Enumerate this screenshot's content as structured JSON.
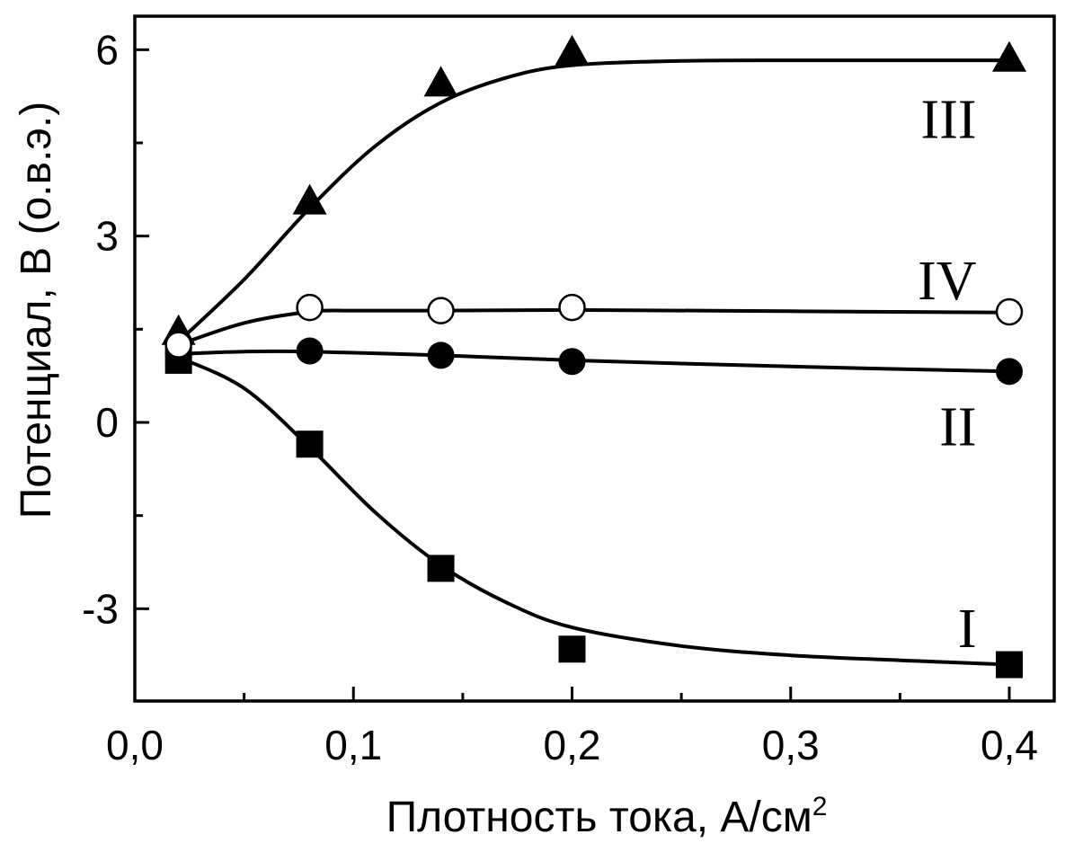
{
  "chart_data": {
    "type": "line",
    "title": "",
    "xlabel": "Плотность тока, А/см",
    "xlabel_superscript": "2",
    "ylabel": "Потенциал, В (о.в.э.)",
    "xlim": [
      0.0,
      0.4
    ],
    "ylim": [
      -4.5,
      6.6
    ],
    "x_ticks": [
      0.0,
      0.1,
      0.2,
      0.3,
      0.4
    ],
    "x_tick_labels": [
      "0,0",
      "0,1",
      "0,2",
      "0,3",
      "0,4"
    ],
    "y_ticks": [
      -3,
      0,
      3,
      6
    ],
    "y_tick_labels": [
      "-3",
      "0",
      "3",
      "6"
    ],
    "grid": false,
    "series": [
      {
        "name": "I",
        "marker": "filled-square",
        "color": "#000000",
        "x": [
          0.02,
          0.08,
          0.14,
          0.2,
          0.4
        ],
        "y": [
          1.0,
          -0.35,
          -2.35,
          -3.65,
          -3.9
        ],
        "curve": [
          [
            0.02,
            1.05
          ],
          [
            0.05,
            0.55
          ],
          [
            0.08,
            -0.4
          ],
          [
            0.11,
            -1.45
          ],
          [
            0.14,
            -2.3
          ],
          [
            0.17,
            -2.9
          ],
          [
            0.2,
            -3.3
          ],
          [
            0.25,
            -3.6
          ],
          [
            0.3,
            -3.75
          ],
          [
            0.35,
            -3.83
          ],
          [
            0.4,
            -3.9
          ]
        ]
      },
      {
        "name": "II",
        "marker": "filled-circle",
        "color": "#000000",
        "x": [
          0.02,
          0.08,
          0.14,
          0.2,
          0.4
        ],
        "y": [
          1.1,
          1.15,
          1.08,
          0.98,
          0.82
        ],
        "curve": [
          [
            0.02,
            1.1
          ],
          [
            0.05,
            1.14
          ],
          [
            0.08,
            1.14
          ],
          [
            0.14,
            1.08
          ],
          [
            0.2,
            1.0
          ],
          [
            0.3,
            0.9
          ],
          [
            0.4,
            0.82
          ]
        ]
      },
      {
        "name": "III",
        "marker": "filled-triangle",
        "color": "#000000",
        "x": [
          0.02,
          0.08,
          0.14,
          0.2,
          0.4
        ],
        "y": [
          1.45,
          3.55,
          5.45,
          5.95,
          5.85
        ],
        "curve": [
          [
            0.02,
            1.3
          ],
          [
            0.05,
            2.3
          ],
          [
            0.08,
            3.45
          ],
          [
            0.11,
            4.45
          ],
          [
            0.14,
            5.15
          ],
          [
            0.17,
            5.55
          ],
          [
            0.2,
            5.75
          ],
          [
            0.25,
            5.82
          ],
          [
            0.3,
            5.83
          ],
          [
            0.35,
            5.83
          ],
          [
            0.4,
            5.83
          ]
        ]
      },
      {
        "name": "IV",
        "marker": "open-circle",
        "color": "#000000",
        "x": [
          0.02,
          0.08,
          0.14,
          0.2,
          0.4
        ],
        "y": [
          1.25,
          1.85,
          1.8,
          1.85,
          1.78
        ],
        "curve": [
          [
            0.02,
            1.25
          ],
          [
            0.05,
            1.6
          ],
          [
            0.08,
            1.78
          ],
          [
            0.1,
            1.8
          ],
          [
            0.14,
            1.8
          ],
          [
            0.2,
            1.81
          ],
          [
            0.3,
            1.79
          ],
          [
            0.4,
            1.77
          ]
        ]
      }
    ],
    "series_labels": [
      {
        "text": "III",
        "x": 0.385,
        "y": 4.9
      },
      {
        "text": "IV",
        "x": 0.385,
        "y": 2.3
      },
      {
        "text": "II",
        "x": 0.385,
        "y": -0.05
      },
      {
        "text": "I",
        "x": 0.385,
        "y": -3.3
      }
    ]
  }
}
